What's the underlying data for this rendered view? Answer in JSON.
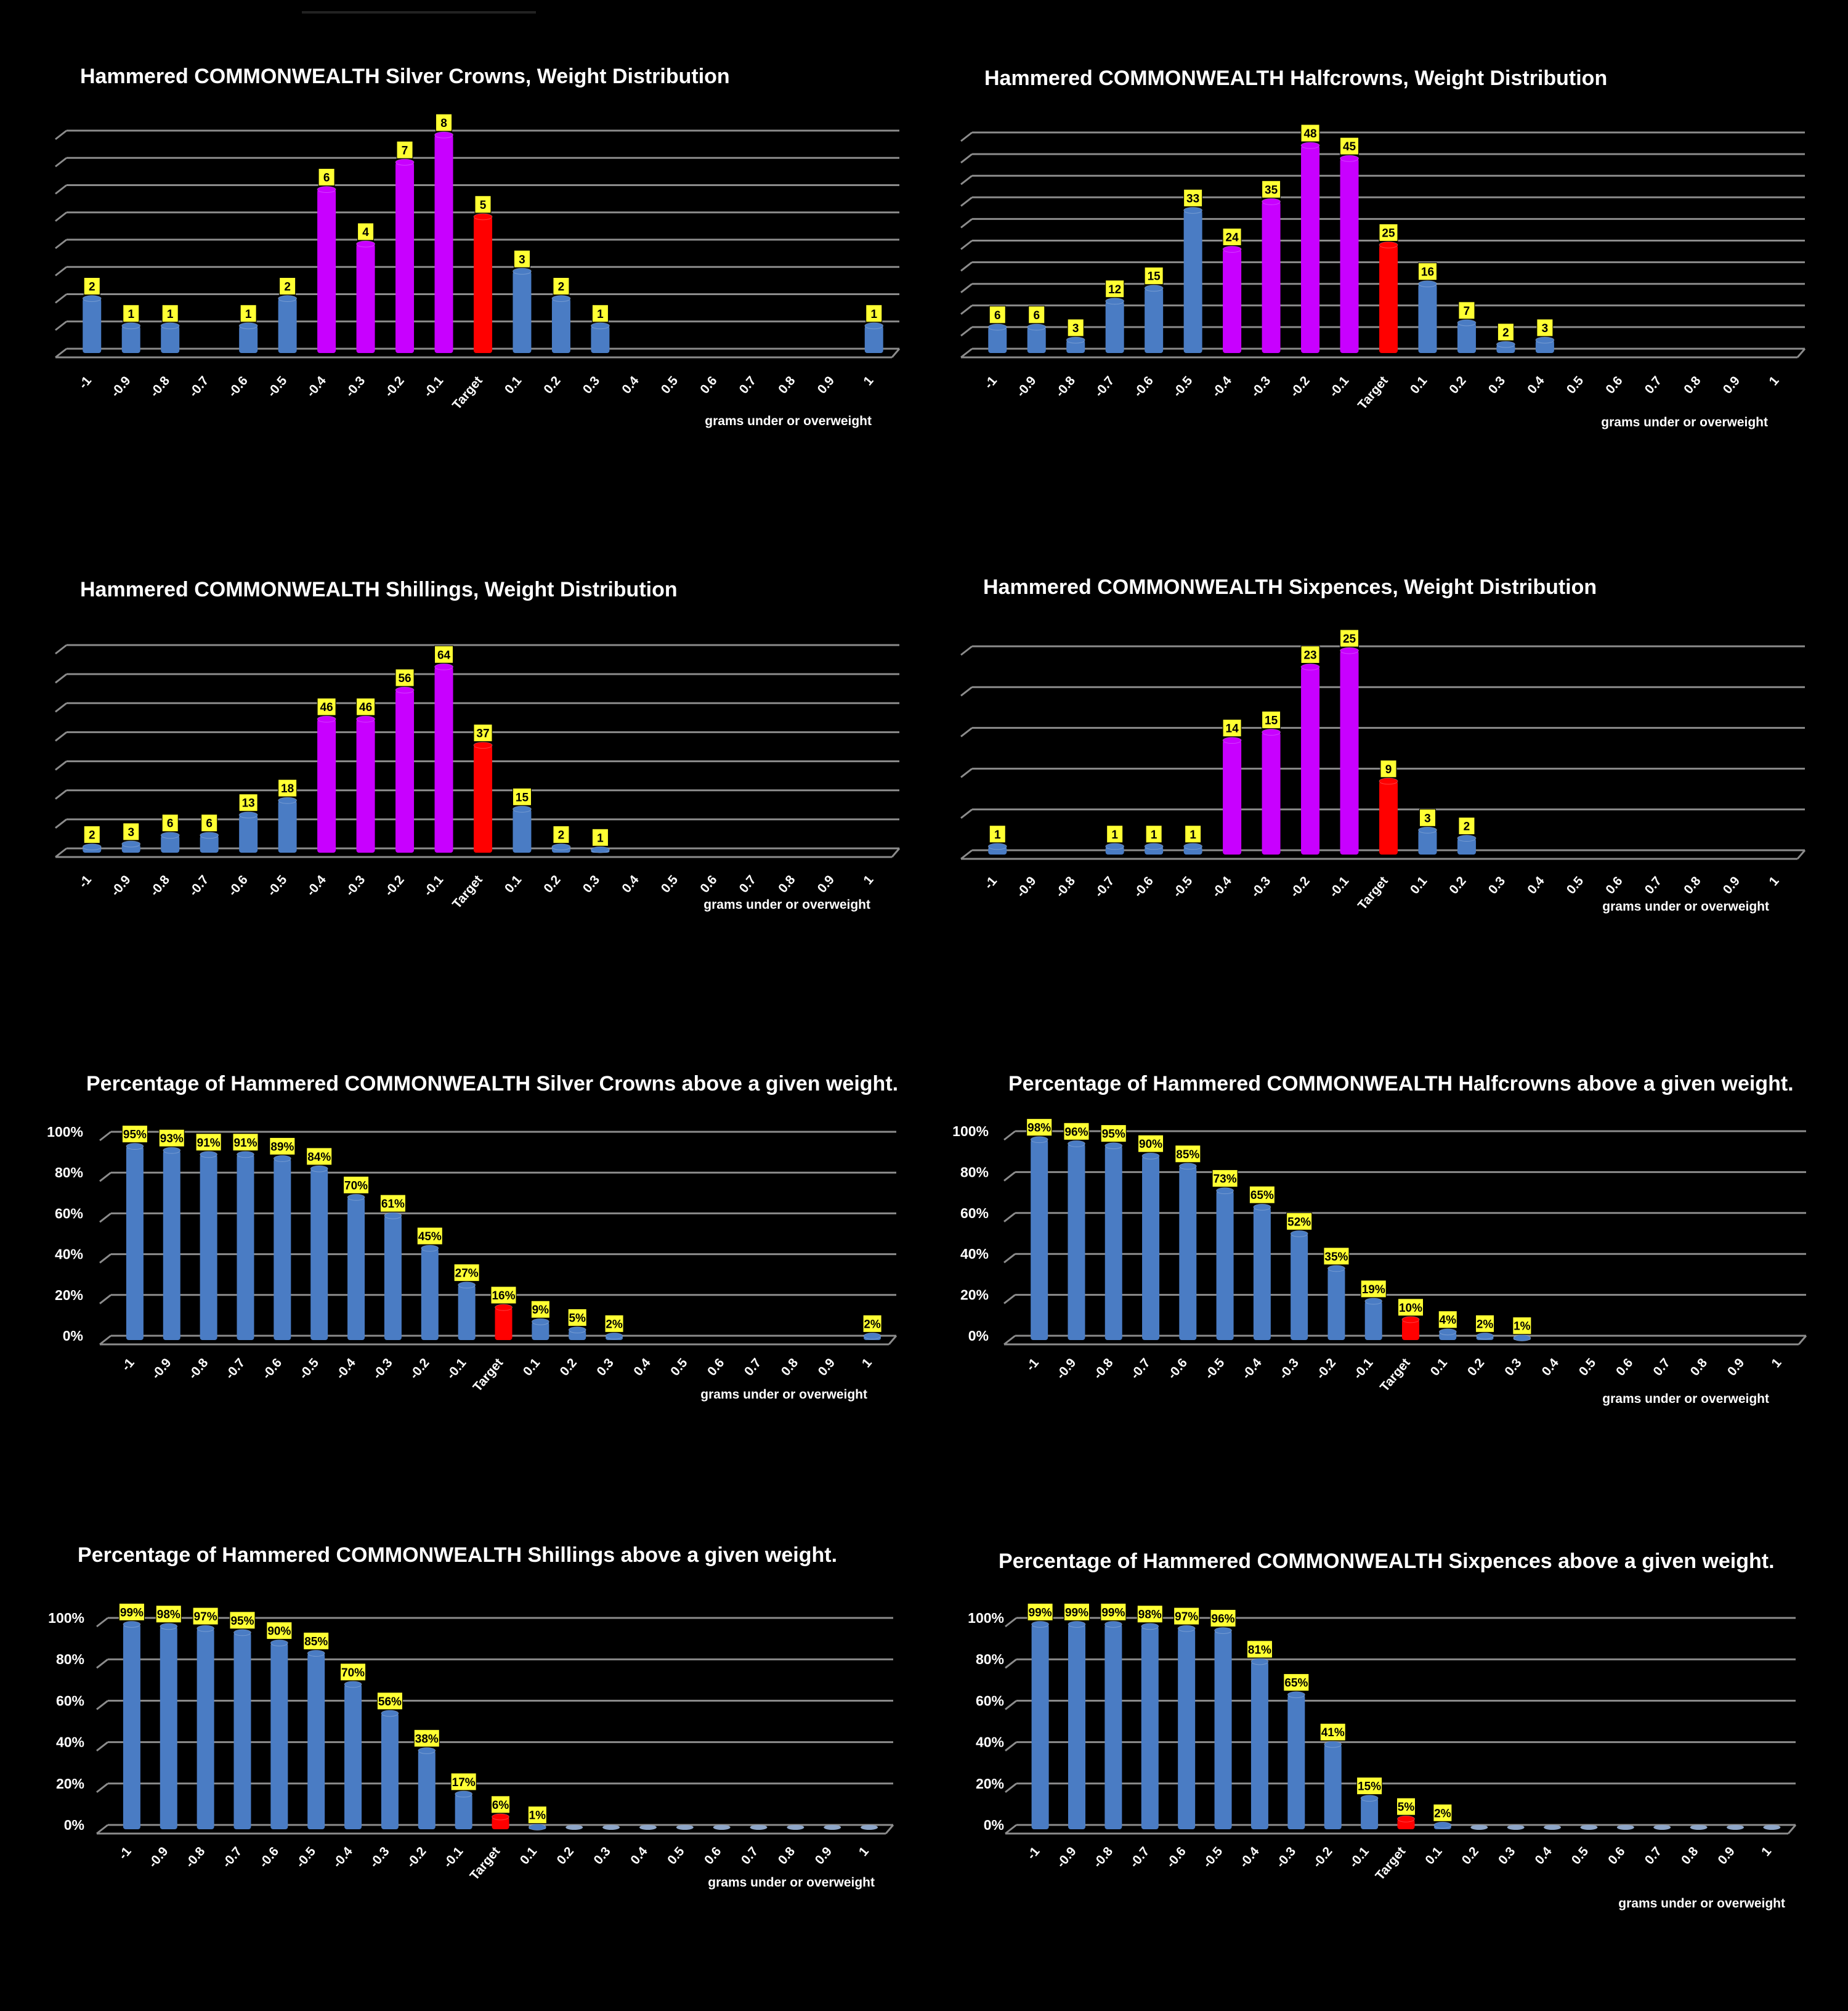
{
  "colors": {
    "background": "#000000",
    "normal": "#4a7cc4",
    "highlight": "#c800ff",
    "target": "#ff0000",
    "label_bg": "#ffff33",
    "grid": "#8c8c8c"
  },
  "chart_data": [
    {
      "type": "bar",
      "panel": "dist-crowns",
      "title": "Hammered COMMONWEALTH Silver Crowns, Weight Distribution",
      "xlabel": "grams under or overweight",
      "ylabel": "",
      "categories": [
        "-1",
        "-0.9",
        "-0.8",
        "-0.7",
        "-0.6",
        "-0.5",
        "-0.4",
        "-0.3",
        "-0.2",
        "-0.1",
        "Target",
        "0.1",
        "0.2",
        "0.3",
        "0.4",
        "0.5",
        "0.6",
        "0.7",
        "0.8",
        "0.9",
        "1"
      ],
      "values": [
        2,
        1,
        1,
        0,
        1,
        2,
        6,
        4,
        7,
        8,
        5,
        3,
        2,
        1,
        0,
        0,
        0,
        0,
        0,
        0,
        1
      ],
      "highlight": [
        "-0.4",
        "-0.3",
        "-0.2",
        "-0.1"
      ],
      "ylim": [
        0,
        8
      ],
      "grid_lines": 8,
      "y_ticks": [],
      "percent": false
    },
    {
      "type": "bar",
      "panel": "dist-halfcrowns",
      "title": "Hammered COMMONWEALTH Halfcrowns, Weight Distribution",
      "xlabel": "grams under or overweight",
      "ylabel": "",
      "categories": [
        "-1",
        "-0.9",
        "-0.8",
        "-0.7",
        "-0.6",
        "-0.5",
        "-0.4",
        "-0.3",
        "-0.2",
        "-0.1",
        "Target",
        "0.1",
        "0.2",
        "0.3",
        "0.4",
        "0.5",
        "0.6",
        "0.7",
        "0.8",
        "0.9",
        "1"
      ],
      "values": [
        6,
        6,
        3,
        12,
        15,
        33,
        24,
        35,
        48,
        45,
        25,
        16,
        7,
        2,
        3,
        0,
        0,
        0,
        0,
        0,
        0
      ],
      "highlight": [
        "-0.4",
        "-0.3",
        "-0.2",
        "-0.1"
      ],
      "ylim": [
        0,
        50
      ],
      "grid_lines": 10,
      "y_ticks": [],
      "percent": false
    },
    {
      "type": "bar",
      "panel": "dist-shillings",
      "title": "Hammered COMMONWEALTH Shillings, Weight Distribution",
      "xlabel": "grams under or overweight",
      "ylabel": "",
      "categories": [
        "-1",
        "-0.9",
        "-0.8",
        "-0.7",
        "-0.6",
        "-0.5",
        "-0.4",
        "-0.3",
        "-0.2",
        "-0.1",
        "Target",
        "0.1",
        "0.2",
        "0.3",
        "0.4",
        "0.5",
        "0.6",
        "0.7",
        "0.8",
        "0.9",
        "1"
      ],
      "values": [
        2,
        3,
        6,
        6,
        13,
        18,
        46,
        46,
        56,
        64,
        37,
        15,
        2,
        1,
        0,
        0,
        0,
        0,
        0,
        0,
        0
      ],
      "highlight": [
        "-0.4",
        "-0.3",
        "-0.2",
        "-0.1"
      ],
      "ylim": [
        0,
        70
      ],
      "grid_lines": 7,
      "y_ticks": [],
      "percent": false
    },
    {
      "type": "bar",
      "panel": "dist-sixpences",
      "title": "Hammered COMMONWEALTH Sixpences, Weight Distribution",
      "xlabel": "grams under or overweight",
      "ylabel": "",
      "categories": [
        "-1",
        "-0.9",
        "-0.8",
        "-0.7",
        "-0.6",
        "-0.5",
        "-0.4",
        "-0.3",
        "-0.2",
        "-0.1",
        "Target",
        "0.1",
        "0.2",
        "0.3",
        "0.4",
        "0.5",
        "0.6",
        "0.7",
        "0.8",
        "0.9",
        "1"
      ],
      "values": [
        1,
        0,
        0,
        1,
        1,
        1,
        14,
        15,
        23,
        25,
        9,
        3,
        2,
        0,
        0,
        0,
        0,
        0,
        0,
        0,
        0
      ],
      "highlight": [
        "-0.4",
        "-0.3",
        "-0.2",
        "-0.1"
      ],
      "ylim": [
        0,
        25
      ],
      "grid_lines": 5,
      "y_ticks": [],
      "percent": false
    },
    {
      "type": "bar",
      "panel": "pct-crowns",
      "title": "Percentage of Hammered COMMONWEALTH Silver Crowns above a given weight.",
      "xlabel": "grams under or overweight",
      "ylabel": "",
      "categories": [
        "-1",
        "-0.9",
        "-0.8",
        "-0.7",
        "-0.6",
        "-0.5",
        "-0.4",
        "-0.3",
        "-0.2",
        "-0.1",
        "Target",
        "0.1",
        "0.2",
        "0.3",
        "0.4",
        "0.5",
        "0.6",
        "0.7",
        "0.8",
        "0.9",
        "1"
      ],
      "values": [
        95,
        93,
        91,
        91,
        89,
        84,
        70,
        61,
        45,
        27,
        16,
        9,
        5,
        2,
        0,
        0,
        0,
        0,
        0,
        0,
        2
      ],
      "highlight": [],
      "ylim": [
        0,
        100
      ],
      "grid_lines": 5,
      "y_ticks": [
        "0%",
        "20%",
        "40%",
        "60%",
        "80%",
        "100%"
      ],
      "percent": true
    },
    {
      "type": "bar",
      "panel": "pct-halfcrowns",
      "title": "Percentage of Hammered COMMONWEALTH Halfcrowns above a given weight.",
      "xlabel": "grams under or overweight",
      "ylabel": "",
      "categories": [
        "-1",
        "-0.9",
        "-0.8",
        "-0.7",
        "-0.6",
        "-0.5",
        "-0.4",
        "-0.3",
        "-0.2",
        "-0.1",
        "Target",
        "0.1",
        "0.2",
        "0.3",
        "0.4",
        "0.5",
        "0.6",
        "0.7",
        "0.8",
        "0.9",
        "1"
      ],
      "values": [
        98,
        96,
        95,
        90,
        85,
        73,
        65,
        52,
        35,
        19,
        10,
        4,
        2,
        1,
        0,
        0,
        0,
        0,
        0,
        0,
        0
      ],
      "highlight": [],
      "ylim": [
        0,
        100
      ],
      "grid_lines": 5,
      "y_ticks": [
        "0%",
        "20%",
        "40%",
        "60%",
        "80%",
        "100%"
      ],
      "percent": true
    },
    {
      "type": "bar",
      "panel": "pct-shillings",
      "title": "Percentage of Hammered COMMONWEALTH Shillings above a given weight.",
      "xlabel": "grams under or overweight",
      "ylabel": "",
      "categories": [
        "-1",
        "-0.9",
        "-0.8",
        "-0.7",
        "-0.6",
        "-0.5",
        "-0.4",
        "-0.3",
        "-0.2",
        "-0.1",
        "Target",
        "0.1",
        "0.2",
        "0.3",
        "0.4",
        "0.5",
        "0.6",
        "0.7",
        "0.8",
        "0.9",
        "1"
      ],
      "values": [
        99,
        98,
        97,
        95,
        90,
        85,
        70,
        56,
        38,
        17,
        6,
        1,
        0,
        0,
        0,
        0,
        0,
        0,
        0,
        0,
        0
      ],
      "highlight": [],
      "ylim": [
        0,
        100
      ],
      "grid_lines": 5,
      "y_ticks": [
        "0%",
        "20%",
        "40%",
        "60%",
        "80%",
        "100%"
      ],
      "percent": true
    },
    {
      "type": "bar",
      "panel": "pct-sixpences",
      "title": "Percentage of Hammered COMMONWEALTH Sixpences above a given weight.",
      "xlabel": "grams under or overweight",
      "ylabel": "",
      "categories": [
        "-1",
        "-0.9",
        "-0.8",
        "-0.7",
        "-0.6",
        "-0.5",
        "-0.4",
        "-0.3",
        "-0.2",
        "-0.1",
        "Target",
        "0.1",
        "0.2",
        "0.3",
        "0.4",
        "0.5",
        "0.6",
        "0.7",
        "0.8",
        "0.9",
        "1"
      ],
      "values": [
        99,
        99,
        99,
        98,
        97,
        96,
        81,
        65,
        41,
        15,
        5,
        2,
        0,
        0,
        0,
        0,
        0,
        0,
        0,
        0,
        0
      ],
      "highlight": [],
      "ylim": [
        0,
        100
      ],
      "grid_lines": 5,
      "y_ticks": [
        "0%",
        "20%",
        "40%",
        "60%",
        "80%",
        "100%"
      ],
      "percent": true
    }
  ]
}
